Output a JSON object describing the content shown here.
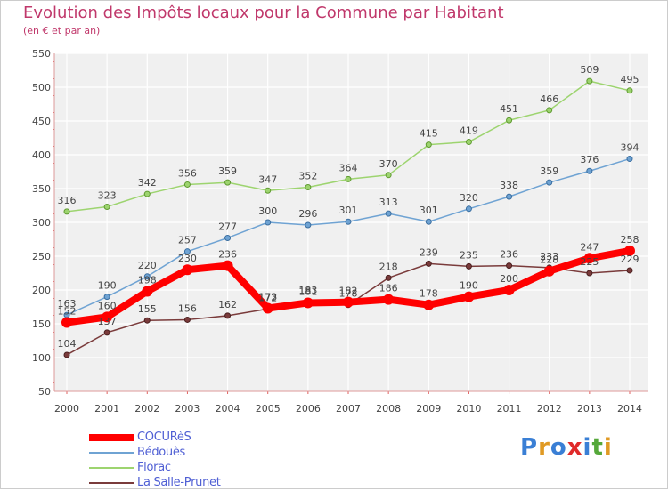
{
  "header": {
    "title": "Evolution des Impôts locaux pour la Commune par Habitant",
    "subtitle": "(en € et par an)"
  },
  "brand": {
    "text": "Proxiti",
    "colors": [
      "#3a7fd5",
      "#e09a24",
      "#3a7fd5",
      "#e02a2a",
      "#3a7fd5",
      "#55a83a",
      "#e09a24"
    ]
  },
  "chart_data": {
    "type": "line",
    "title": "Evolution des Impôts locaux pour la Commune par Habitant",
    "subtitle": "(en € et par an)",
    "xlabel": "",
    "ylabel": "",
    "x": [
      "2000",
      "2001",
      "2002",
      "2003",
      "2004",
      "2005",
      "2006",
      "2007",
      "2008",
      "2009",
      "2010",
      "2011",
      "2012",
      "2013",
      "2014"
    ],
    "ylim": [
      50,
      550
    ],
    "yticks": [
      50,
      100,
      150,
      200,
      250,
      300,
      350,
      400,
      450,
      500,
      550
    ],
    "grid": true,
    "legend_position": "bottom-left",
    "series": [
      {
        "name": "COCURèS",
        "color": "#ff0000",
        "emphasis": true,
        "values": [
          152,
          160,
          198,
          230,
          236,
          173,
          181,
          182,
          186,
          178,
          190,
          200,
          228,
          247,
          258
        ],
        "labels": [
          "152",
          "160",
          "198",
          "230",
          "236",
          "173",
          "181",
          "182",
          "186",
          "178",
          "190",
          "200",
          "228",
          "247",
          "258"
        ]
      },
      {
        "name": "Bédouès",
        "color": "#6fa3d3",
        "values": [
          163,
          190,
          220,
          257,
          277,
          300,
          296,
          301,
          313,
          301,
          320,
          338,
          359,
          376,
          394
        ],
        "labels": [
          "163",
          "190",
          "220",
          "257",
          "277",
          "300",
          "296",
          "301",
          "313",
          "301",
          "320",
          "338",
          "359",
          "376",
          "394"
        ]
      },
      {
        "name": "Florac",
        "color": "#9dd46f",
        "values": [
          316,
          323,
          342,
          356,
          359,
          347,
          352,
          364,
          370,
          415,
          419,
          451,
          466,
          509,
          495
        ],
        "labels": [
          "316",
          "323",
          "342",
          "356",
          "359",
          "347",
          "352",
          "364",
          "370",
          "415",
          "419",
          "451",
          "466",
          "509",
          "495"
        ]
      },
      {
        "name": "La Salle-Prunet",
        "color": "#7a3b3b",
        "values": [
          104,
          137,
          155,
          156,
          162,
          172,
          183,
          178,
          218,
          239,
          235,
          236,
          233,
          225,
          229
        ],
        "labels": [
          "104",
          "137",
          "155",
          "156",
          "162",
          "172",
          "183",
          "178",
          "218",
          "239",
          "235",
          "236",
          "233",
          "225",
          "229"
        ]
      }
    ]
  }
}
